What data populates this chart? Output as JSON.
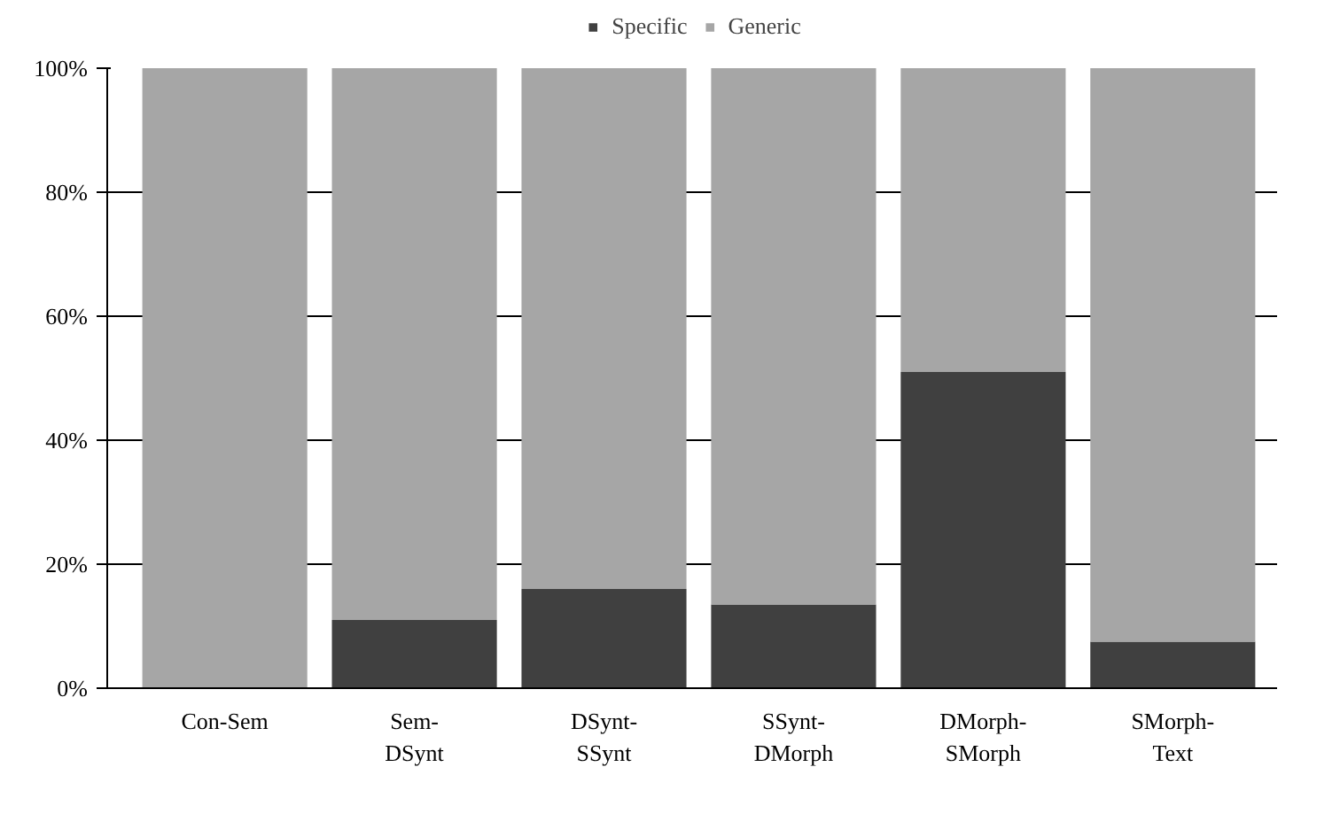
{
  "chart_data": {
    "type": "bar",
    "stacked": true,
    "categories": [
      "Con-Sem",
      "Sem-\nDSynt",
      "DSynt-\nSSynt",
      "SSynt-\nDMorph",
      "DMorph-\nSMorph",
      "SMorph-\nText"
    ],
    "series": [
      {
        "name": "Specific",
        "color": "#404040",
        "values": [
          0,
          11,
          16,
          13.5,
          51,
          7.5
        ]
      },
      {
        "name": "Generic",
        "color": "#a6a6a6",
        "values": [
          100,
          89,
          84,
          86.5,
          49,
          92.5
        ]
      }
    ],
    "ylim": [
      0,
      100
    ],
    "yticks": [
      {
        "value": 0,
        "label": "0%"
      },
      {
        "value": 20,
        "label": "20%"
      },
      {
        "value": 40,
        "label": "40%"
      },
      {
        "value": 60,
        "label": "60%"
      },
      {
        "value": 80,
        "label": "80%"
      },
      {
        "value": 100,
        "label": "100%"
      }
    ],
    "grid": "y",
    "legend": "top"
  }
}
